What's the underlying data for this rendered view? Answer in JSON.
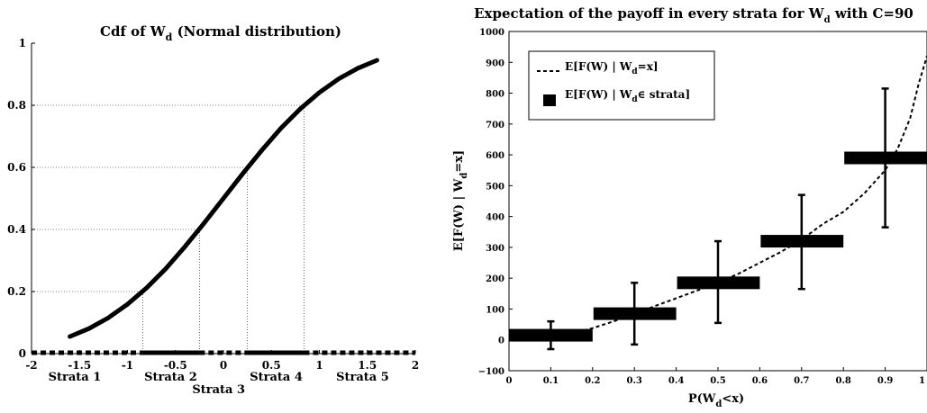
{
  "chart_data": [
    {
      "type": "line",
      "title": "Cdf of W",
      "title_sub": "d",
      "title_suffix": " (Normal distribution)",
      "xlim": [
        -2,
        2
      ],
      "ylim": [
        0,
        1
      ],
      "x_ticks": [
        "-2",
        "-1.5",
        "-1",
        "-0.5",
        "0",
        "0.5",
        "1",
        "1.5",
        "2"
      ],
      "y_ticks": [
        "0",
        "0.2",
        "0.4",
        "0.6",
        "0.8",
        "1"
      ],
      "series": [
        {
          "x": [
            -1.6,
            -1.4,
            -1.2,
            -1.0,
            -0.8,
            -0.6,
            -0.4,
            -0.2,
            0.0,
            0.2,
            0.4,
            0.6,
            0.8,
            1.0,
            1.2,
            1.4,
            1.6
          ],
          "y": [
            0.055,
            0.081,
            0.115,
            0.159,
            0.212,
            0.274,
            0.345,
            0.421,
            0.5,
            0.579,
            0.655,
            0.726,
            0.788,
            0.841,
            0.885,
            0.919,
            0.945
          ]
        }
      ],
      "quantile_guides": [
        {
          "x": -0.84,
          "y": 0.2
        },
        {
          "x": -0.25,
          "y": 0.4
        },
        {
          "x": 0.25,
          "y": 0.6
        },
        {
          "x": 0.84,
          "y": 0.8
        }
      ],
      "strata_labels": [
        {
          "label": "Strata 1",
          "x": -1.55,
          "row": 0
        },
        {
          "label": "Strata 2",
          "x": -0.55,
          "row": 0
        },
        {
          "label": "Strata 3",
          "x": -0.05,
          "row": 1
        },
        {
          "label": "Strata 4",
          "x": 0.55,
          "row": 0
        },
        {
          "label": "Strata 5",
          "x": 1.45,
          "row": 0
        }
      ]
    },
    {
      "type": "line",
      "title": "Expectation of the payoff in every strata for W",
      "title_sub": "d",
      "title_suffix": " with C=90",
      "xlabel": "P(W",
      "xlabel_sub": "d",
      "xlabel_suffix": "<x)",
      "ylabel": "E[F(W) | W",
      "ylabel_sub": "d",
      "ylabel_suffix": "=x]",
      "xlim": [
        0,
        1
      ],
      "ylim": [
        -100,
        1000
      ],
      "x_ticks": [
        "0",
        "0.1",
        "0.2",
        "0.3",
        "0.4",
        "0.5",
        "0.6",
        "0.7",
        "0.8",
        "0.9",
        "1"
      ],
      "y_ticks": [
        "−100",
        "0",
        "100",
        "200",
        "300",
        "400",
        "500",
        "600",
        "700",
        "800",
        "900",
        "1000"
      ],
      "legend": {
        "line_label": "E[F(W) | W",
        "line_sub": "d",
        "line_suffix": "=x]",
        "bar_label": "E[F(W) | W",
        "bar_sub": "d",
        "bar_suffix": "∈ strata]",
        "placement": "top-left"
      },
      "curve": {
        "x": [
          0.0,
          0.05,
          0.1,
          0.15,
          0.2,
          0.25,
          0.3,
          0.35,
          0.4,
          0.45,
          0.5,
          0.55,
          0.6,
          0.65,
          0.7,
          0.75,
          0.8,
          0.85,
          0.9,
          0.93,
          0.96,
          0.98,
          1.0
        ],
        "y": [
          0,
          2,
          8,
          20,
          38,
          60,
          85,
          110,
          135,
          160,
          185,
          215,
          250,
          285,
          325,
          375,
          415,
          475,
          550,
          620,
          720,
          830,
          920
        ]
      },
      "strata": [
        {
          "x0": 0.0,
          "x1": 0.2,
          "mean": 15,
          "err_low": -30,
          "err_high": 60
        },
        {
          "x0": 0.2,
          "x1": 0.4,
          "mean": 85,
          "err_low": -15,
          "err_high": 185
        },
        {
          "x0": 0.4,
          "x1": 0.6,
          "mean": 185,
          "err_low": 55,
          "err_high": 320
        },
        {
          "x0": 0.6,
          "x1": 0.8,
          "mean": 320,
          "err_low": 165,
          "err_high": 470
        },
        {
          "x0": 0.8,
          "x1": 1.0,
          "mean": 590,
          "err_low": 365,
          "err_high": 815
        }
      ]
    }
  ]
}
